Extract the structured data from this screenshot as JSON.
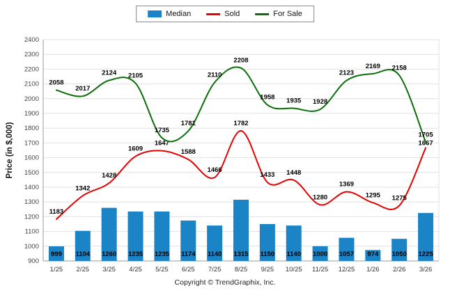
{
  "ylabel_text": "Price (in $,000)",
  "footer": {
    "copyright": "Copyright © TrendGraphix, Inc."
  },
  "chart_data": {
    "type": "bar+line",
    "title": "",
    "ylabel": "Price (in $,000)",
    "xlabel": "",
    "ylim": [
      900,
      2400
    ],
    "ytick_step": 100,
    "grid": true,
    "legend_position": "top",
    "categories": [
      "1/25",
      "2/25",
      "3/25",
      "4/25",
      "5/25",
      "6/25",
      "7/25",
      "8/25",
      "9/25",
      "10/25",
      "11/25",
      "12/25",
      "1/26",
      "2/26",
      "3/26"
    ],
    "series": [
      {
        "name": "Median",
        "type": "bar",
        "color": "#1b84c6",
        "values": [
          999,
          1104,
          1260,
          1235,
          1235,
          1174,
          1140,
          1315,
          1150,
          1140,
          1000,
          1057,
          974,
          1050,
          1225
        ]
      },
      {
        "name": "Sold",
        "type": "line",
        "color": "#e60000",
        "values": [
          1183,
          1342,
          1428,
          1609,
          1647,
          1588,
          1466,
          1782,
          1433,
          1448,
          1280,
          1369,
          1295,
          1275,
          1667
        ]
      },
      {
        "name": "For Sale",
        "type": "line",
        "color": "#0b6e0b",
        "values": [
          2058,
          2017,
          2124,
          2105,
          1735,
          1781,
          2110,
          2208,
          1958,
          1935,
          1928,
          2123,
          2169,
          2158,
          1705
        ]
      }
    ]
  }
}
